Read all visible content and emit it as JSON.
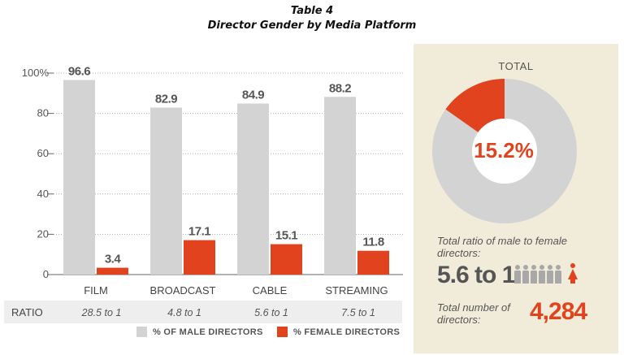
{
  "header": {
    "table_number": "Table 4",
    "title": "Director Gender by Media Platform"
  },
  "chart_data": {
    "type": "bar",
    "title": "Director Gender by Media Platform",
    "categories": [
      "FILM",
      "BROADCAST",
      "CABLE",
      "STREAMING"
    ],
    "series": [
      {
        "name": "% OF MALE DIRECTORS",
        "color": "#d3d3d3",
        "values": [
          96.6,
          82.9,
          84.9,
          88.2
        ],
        "labels": [
          "96.6",
          "82.9",
          "84.9",
          "88.2"
        ]
      },
      {
        "name": "% FEMALE DIRECTORS",
        "color": "#e2431f",
        "values": [
          3.4,
          17.1,
          15.1,
          11.8
        ],
        "labels": [
          "3.4",
          "17.1",
          "15.1",
          "11.8"
        ]
      }
    ],
    "ylim": [
      0,
      100
    ],
    "yticks": [
      0,
      20,
      40,
      60,
      80,
      100
    ],
    "ytick_labels": [
      "0",
      "20",
      "40",
      "60",
      "80",
      "100%"
    ],
    "ratio_row_label": "RATIO",
    "ratios": [
      "28.5 to 1",
      "4.8 to 1",
      "5.6 to 1",
      "7.5 to 1"
    ]
  },
  "legend": {
    "male": "% OF MALE DIRECTORS",
    "female": "% FEMALE DIRECTORS"
  },
  "total_panel": {
    "title": "TOTAL",
    "female_percent": 15.2,
    "female_percent_label": "15.2%",
    "ratio_caption": "Total ratio of male to female directors:",
    "ratio_value": "5.6 to 1",
    "count_caption": "Total number of directors:",
    "count_value": "4,284",
    "male_icon_count": 6
  },
  "colors": {
    "male": "#d3d3d3",
    "female": "#e2431f",
    "panel_bg": "#f1ecd9"
  }
}
